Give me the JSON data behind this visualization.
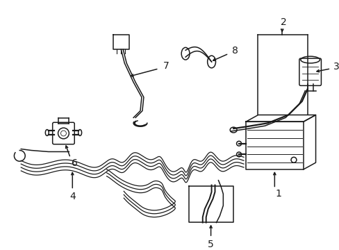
{
  "background_color": "#ffffff",
  "line_color": "#1a1a1a",
  "figsize": [
    4.89,
    3.6
  ],
  "dpi": 100,
  "xlim": [
    0,
    489
  ],
  "ylim": [
    0,
    360
  ]
}
